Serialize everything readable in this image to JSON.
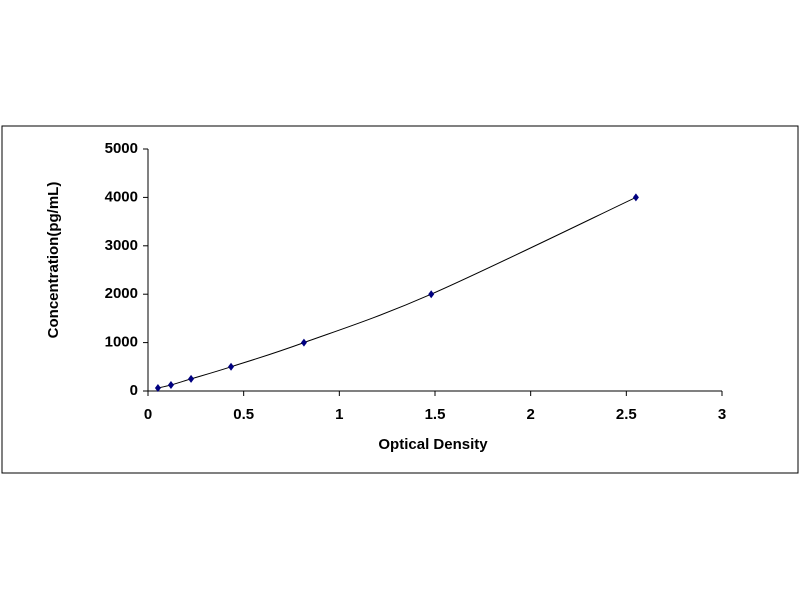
{
  "chart_data": {
    "type": "scatter",
    "x_label": "Optical Density",
    "y_label": "Concentration(pg/mL)",
    "series": [
      {
        "color": "#000080",
        "line_color": "#000000",
        "x": [
          0.052,
          0.12,
          0.225,
          0.434,
          0.815,
          1.48,
          2.55
        ],
        "values": [
          62.5,
          125,
          250,
          500,
          1000,
          2000,
          4000
        ]
      }
    ],
    "xlim": [
      0,
      3
    ],
    "xticks": [
      0,
      0.5,
      1,
      1.5,
      2,
      2.5,
      3
    ],
    "ylim": [
      0,
      5000
    ],
    "yticks": [
      0,
      1000,
      2000,
      3000,
      4000,
      5000
    ],
    "grid": false
  }
}
